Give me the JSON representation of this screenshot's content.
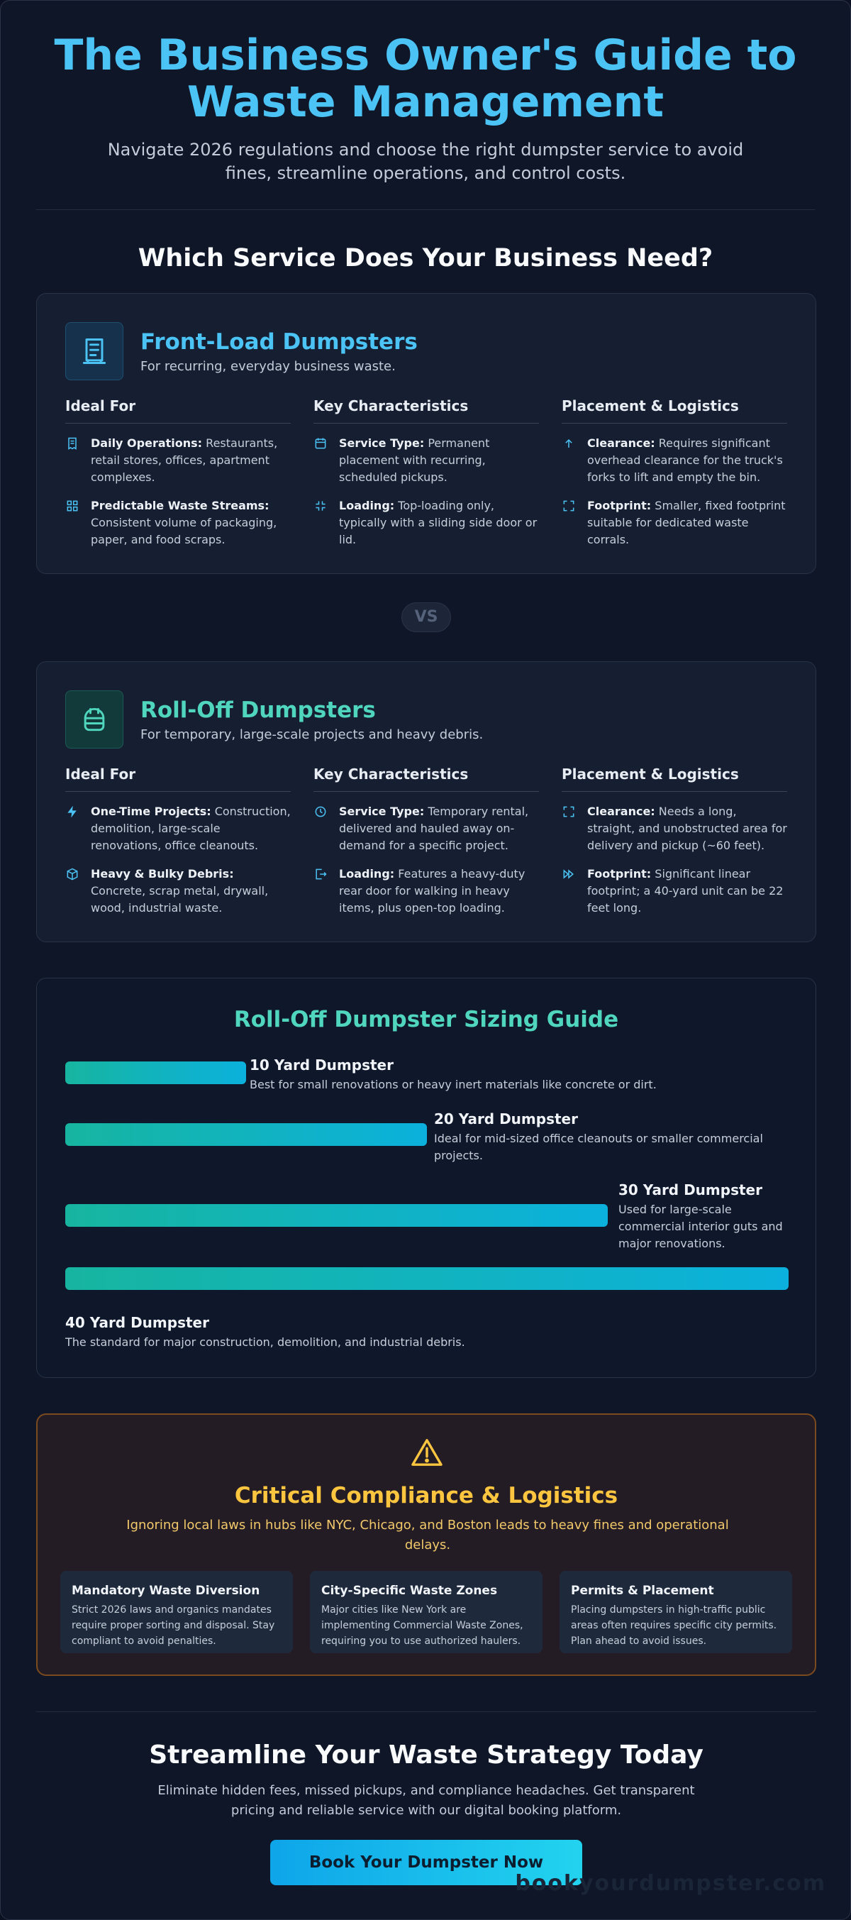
{
  "hero": {
    "title": "The Business Owner's Guide to Waste Management",
    "subtitle": "Navigate 2026 regulations and choose the right dumpster service to avoid fines, streamline operations, and control costs."
  },
  "services_title": "Which Service Does Your Business Need?",
  "front_load": {
    "title": "Front-Load Dumpsters",
    "subtitle": "For recurring, everyday business waste.",
    "icon": "dumpster-icon",
    "columns": [
      {
        "heading": "Ideal For",
        "items": [
          {
            "icon": "receipt-icon",
            "label": "Daily Operations:",
            "text": "Restaurants, retail stores, offices, apartment complexes."
          },
          {
            "icon": "grid-icon",
            "label": "Predictable Waste Streams:",
            "text": "Consistent volume of packaging, paper, and food scraps."
          }
        ]
      },
      {
        "heading": "Key Characteristics",
        "items": [
          {
            "icon": "calendar-icon",
            "label": "Service Type:",
            "text": "Permanent placement with recurring, scheduled pickups."
          },
          {
            "icon": "compress-icon",
            "label": "Loading:",
            "text": "Top-loading only, typically with a sliding side door or lid."
          }
        ]
      },
      {
        "heading": "Placement & Logistics",
        "items": [
          {
            "icon": "arrow-up-icon",
            "label": "Clearance:",
            "text": "Requires significant overhead clearance for the truck's forks to lift and empty the bin."
          },
          {
            "icon": "expand-icon",
            "label": "Footprint:",
            "text": "Smaller, fixed footprint suitable for dedicated waste corrals."
          }
        ]
      }
    ]
  },
  "vs_label": "VS",
  "roll_off": {
    "title": "Roll-Off Dumpsters",
    "subtitle": "For temporary, large-scale projects and heavy debris.",
    "icon": "container-icon",
    "columns": [
      {
        "heading": "Ideal For",
        "items": [
          {
            "icon": "lightning-icon",
            "label": "One-Time Projects:",
            "text": "Construction, demolition, large-scale renovations, office cleanouts."
          },
          {
            "icon": "cube-icon",
            "label": "Heavy & Bulky Debris:",
            "text": "Concrete, scrap metal, drywall, wood, industrial waste."
          }
        ]
      },
      {
        "heading": "Key Characteristics",
        "items": [
          {
            "icon": "clock-icon",
            "label": "Service Type:",
            "text": "Temporary rental, delivered and hauled away on-demand for a specific project."
          },
          {
            "icon": "door-icon",
            "label": "Loading:",
            "text": "Features a heavy-duty rear door for walking in heavy items, plus open-top loading."
          }
        ]
      },
      {
        "heading": "Placement & Logistics",
        "items": [
          {
            "icon": "expand-icon",
            "label": "Clearance:",
            "text": "Needs a long, straight, and unobstructed area for delivery and pickup (~60 feet)."
          },
          {
            "icon": "fast-forward-icon",
            "label": "Footprint:",
            "text": "Significant linear footprint; a 40-yard unit can be 22 feet long."
          }
        ]
      }
    ]
  },
  "sizing": {
    "title": "Roll-Off Dumpster Sizing Guide",
    "sizes": [
      {
        "name": "10 Yard Dumpster",
        "desc": "Best for small renovations or heavy inert materials like concrete or dirt.",
        "fill": 0.25
      },
      {
        "name": "20 Yard Dumpster",
        "desc": "Ideal for mid-sized office cleanouts or smaller commercial projects.",
        "fill": 0.5
      },
      {
        "name": "30 Yard Dumpster",
        "desc": "Used for large-scale commercial interior guts and major renovations.",
        "fill": 0.75
      },
      {
        "name": "40 Yard Dumpster",
        "desc": "The standard for major construction, demolition, and industrial debris.",
        "fill": 1.0
      }
    ]
  },
  "compliance": {
    "icon": "warning-icon",
    "title": "Critical Compliance & Logistics",
    "subtitle": "Ignoring local laws in hubs like NYC, Chicago, and Boston leads to heavy fines and operational delays.",
    "cards": [
      {
        "title": "Mandatory Waste Diversion",
        "text": "Strict 2026 laws and organics mandates require proper sorting and disposal. Stay compliant to avoid penalties."
      },
      {
        "title": "City-Specific Waste Zones",
        "text": "Major cities like New York are implementing Commercial Waste Zones, requiring you to use authorized haulers."
      },
      {
        "title": "Permits & Placement",
        "text": "Placing dumpsters in high-traffic public areas often requires specific city permits. Plan ahead to avoid issues."
      }
    ]
  },
  "cta": {
    "title": "Streamline Your Waste Strategy Today",
    "text": "Eliminate hidden fees, missed pickups, and compliance headaches. Get transparent pricing and reliable service with our digital booking platform.",
    "button": "Book Your Dumpster Now"
  },
  "watermark": "bookyourdumpster.com",
  "colors": {
    "accent_blue": "#4cc3f5",
    "accent_teal": "#4fd6bc",
    "warning": "#fbc540"
  }
}
